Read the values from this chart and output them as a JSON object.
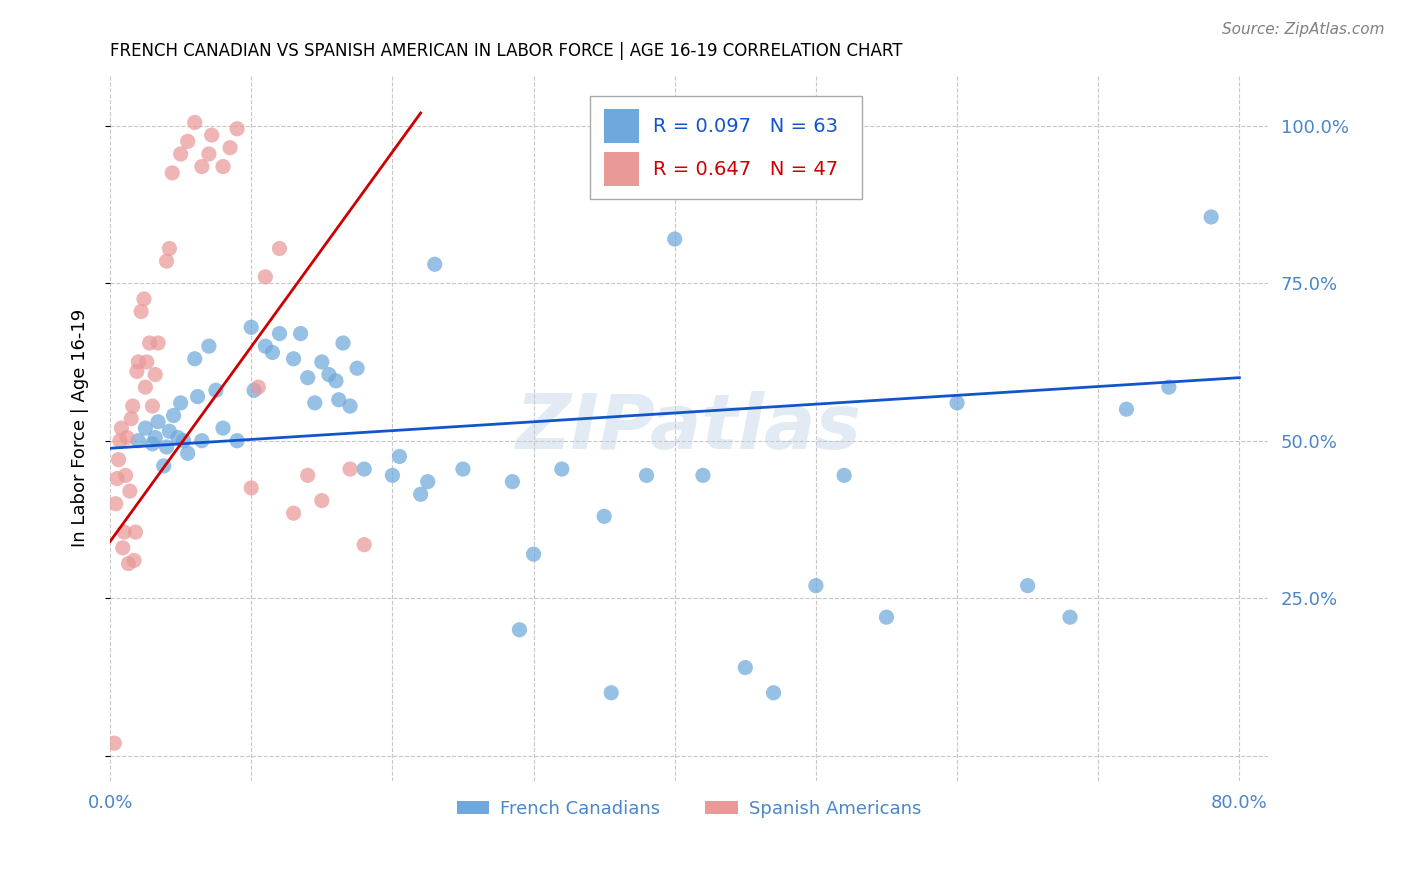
{
  "title": "FRENCH CANADIAN VS SPANISH AMERICAN IN LABOR FORCE | AGE 16-19 CORRELATION CHART",
  "source": "Source: ZipAtlas.com",
  "ylabel": "In Labor Force | Age 16-19",
  "xlim": [
    0.0,
    0.82
  ],
  "ylim": [
    -0.04,
    1.08
  ],
  "xticks": [
    0.0,
    0.1,
    0.2,
    0.3,
    0.4,
    0.5,
    0.6,
    0.7,
    0.8
  ],
  "yticks": [
    0.0,
    0.25,
    0.5,
    0.75,
    1.0
  ],
  "blue_color": "#6fa8dc",
  "pink_color": "#ea9999",
  "blue_line_color": "#1155cc",
  "pink_line_color": "#cc0000",
  "axis_color": "#4a86c8",
  "grid_color": "#c8c8c8",
  "legend_label_blue": "French Canadians",
  "legend_label_pink": "Spanish Americans",
  "R_blue": "R = 0.097",
  "N_blue": "N = 63",
  "R_pink": "R = 0.647",
  "N_pink": "N = 47",
  "blue_trend_x": [
    0.0,
    0.8
  ],
  "blue_trend_y": [
    0.488,
    0.6
  ],
  "pink_trend_x": [
    0.0,
    0.22
  ],
  "pink_trend_y": [
    0.34,
    1.02
  ],
  "blue_x": [
    0.02,
    0.025,
    0.03,
    0.032,
    0.034,
    0.038,
    0.04,
    0.042,
    0.045,
    0.048,
    0.05,
    0.052,
    0.055,
    0.06,
    0.062,
    0.065,
    0.07,
    0.075,
    0.08,
    0.09,
    0.1,
    0.102,
    0.11,
    0.115,
    0.12,
    0.13,
    0.135,
    0.14,
    0.145,
    0.15,
    0.155,
    0.16,
    0.162,
    0.165,
    0.17,
    0.175,
    0.18,
    0.2,
    0.205,
    0.22,
    0.225,
    0.23,
    0.25,
    0.285,
    0.29,
    0.3,
    0.32,
    0.35,
    0.355,
    0.38,
    0.4,
    0.42,
    0.45,
    0.47,
    0.5,
    0.52,
    0.55,
    0.6,
    0.65,
    0.68,
    0.72,
    0.75,
    0.78
  ],
  "blue_y": [
    0.5,
    0.52,
    0.495,
    0.505,
    0.53,
    0.46,
    0.49,
    0.515,
    0.54,
    0.505,
    0.56,
    0.5,
    0.48,
    0.63,
    0.57,
    0.5,
    0.65,
    0.58,
    0.52,
    0.5,
    0.68,
    0.58,
    0.65,
    0.64,
    0.67,
    0.63,
    0.67,
    0.6,
    0.56,
    0.625,
    0.605,
    0.595,
    0.565,
    0.655,
    0.555,
    0.615,
    0.455,
    0.445,
    0.475,
    0.415,
    0.435,
    0.78,
    0.455,
    0.435,
    0.2,
    0.32,
    0.455,
    0.38,
    0.1,
    0.445,
    0.82,
    0.445,
    0.14,
    0.1,
    0.27,
    0.445,
    0.22,
    0.56,
    0.27,
    0.22,
    0.55,
    0.585,
    0.855
  ],
  "pink_x": [
    0.003,
    0.004,
    0.005,
    0.006,
    0.007,
    0.008,
    0.009,
    0.01,
    0.011,
    0.012,
    0.013,
    0.014,
    0.015,
    0.016,
    0.017,
    0.018,
    0.019,
    0.02,
    0.022,
    0.024,
    0.025,
    0.026,
    0.028,
    0.03,
    0.032,
    0.034,
    0.04,
    0.042,
    0.044,
    0.05,
    0.055,
    0.06,
    0.065,
    0.07,
    0.072,
    0.08,
    0.085,
    0.09,
    0.1,
    0.105,
    0.11,
    0.12,
    0.13,
    0.14,
    0.15,
    0.17,
    0.18
  ],
  "pink_y": [
    0.02,
    0.4,
    0.44,
    0.47,
    0.5,
    0.52,
    0.33,
    0.355,
    0.445,
    0.505,
    0.305,
    0.42,
    0.535,
    0.555,
    0.31,
    0.355,
    0.61,
    0.625,
    0.705,
    0.725,
    0.585,
    0.625,
    0.655,
    0.555,
    0.605,
    0.655,
    0.785,
    0.805,
    0.925,
    0.955,
    0.975,
    1.005,
    0.935,
    0.955,
    0.985,
    0.935,
    0.965,
    0.995,
    0.425,
    0.585,
    0.76,
    0.805,
    0.385,
    0.445,
    0.405,
    0.455,
    0.335
  ]
}
